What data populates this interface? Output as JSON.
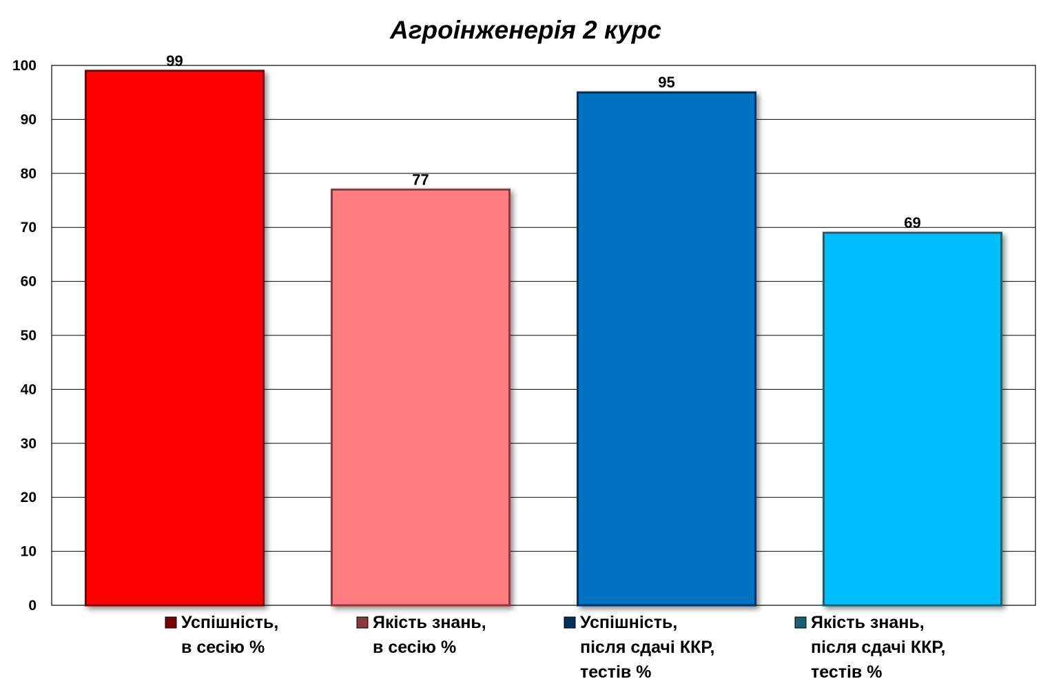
{
  "chart_data": {
    "type": "bar",
    "title": "Агроінженерія 2 курс",
    "xlabel": "",
    "ylabel": "",
    "ylim": [
      0,
      100
    ],
    "yticks": [
      0,
      10,
      20,
      30,
      40,
      50,
      60,
      70,
      80,
      90,
      100
    ],
    "grid": true,
    "legend_position": "bottom",
    "series": [
      {
        "name": "Успішність, в сесію %",
        "legend_lines": [
          "Успішність,",
          "в сесію %"
        ],
        "value": 99,
        "color": "#FF0000",
        "edge_color": "#7A0000"
      },
      {
        "name": "Якість знань, в сесію %",
        "legend_lines": [
          "Якість знань,",
          "в сесію %"
        ],
        "value": 77,
        "color": "#FF7C80",
        "edge_color": "#8A3A3C"
      },
      {
        "name": "Успішність, після сдачі ККР, тестів %",
        "legend_lines": [
          "Успішність,",
          "після сдачі ККР,",
          "тестів %"
        ],
        "value": 95,
        "color": "#0070C0",
        "edge_color": "#003060"
      },
      {
        "name": "Якість знань, після сдачі ККР, тестів %",
        "legend_lines": [
          "Якість знань,",
          "після сдачі ККР,",
          "тестів %"
        ],
        "value": 69,
        "color": "#00BFFF",
        "edge_color": "#1A6070"
      }
    ]
  }
}
